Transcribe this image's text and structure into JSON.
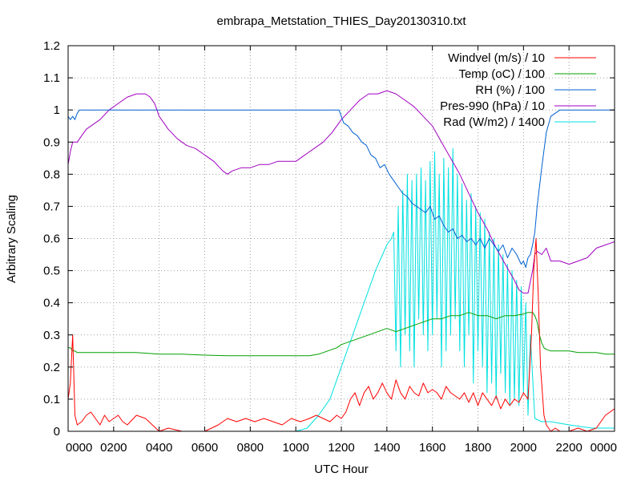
{
  "chart_data": {
    "type": "line",
    "title": "embrapa_Metstation_THIES_Day20130310.txt",
    "xlabel": "UTC Hour",
    "ylabel": "Arbitrary Scaling",
    "xlim": [
      0,
      24
    ],
    "ylim": [
      0,
      1.2
    ],
    "grid": true,
    "legend_position": "top-right",
    "x_ticks": [
      {
        "value": 0,
        "label": "0000"
      },
      {
        "value": 2,
        "label": "0200"
      },
      {
        "value": 4,
        "label": "0400"
      },
      {
        "value": 6,
        "label": "0600"
      },
      {
        "value": 8,
        "label": "0800"
      },
      {
        "value": 10,
        "label": "1000"
      },
      {
        "value": 12,
        "label": "1200"
      },
      {
        "value": 14,
        "label": "1400"
      },
      {
        "value": 16,
        "label": "1600"
      },
      {
        "value": 18,
        "label": "1800"
      },
      {
        "value": 20,
        "label": "2000"
      },
      {
        "value": 22,
        "label": "2200"
      },
      {
        "value": 24,
        "label": "0000"
      }
    ],
    "y_ticks": [
      {
        "value": 0,
        "label": "0"
      },
      {
        "value": 0.1,
        "label": "0.1"
      },
      {
        "value": 0.2,
        "label": "0.2"
      },
      {
        "value": 0.3,
        "label": "0.3"
      },
      {
        "value": 0.4,
        "label": "0.4"
      },
      {
        "value": 0.5,
        "label": "0.5"
      },
      {
        "value": 0.6,
        "label": "0.6"
      },
      {
        "value": 0.7,
        "label": "0.7"
      },
      {
        "value": 0.8,
        "label": "0.8"
      },
      {
        "value": 0.9,
        "label": "0.9"
      },
      {
        "value": 1,
        "label": "1"
      },
      {
        "value": 1.1,
        "label": "1.1"
      },
      {
        "value": 1.2,
        "label": "1.2"
      }
    ],
    "series": [
      {
        "name": "Windvel (m/s) / 10",
        "color": "#ff0000",
        "x": [
          0.0,
          0.1,
          0.2,
          0.3,
          0.4,
          0.6,
          0.8,
          1.0,
          1.2,
          1.4,
          1.6,
          1.8,
          2.0,
          2.2,
          2.4,
          2.6,
          3.0,
          3.4,
          4.0,
          4.4,
          5.0,
          5.6,
          6.0,
          6.6,
          7.0,
          7.4,
          7.8,
          8.2,
          8.6,
          9.0,
          9.4,
          9.8,
          10.2,
          10.6,
          10.9,
          11.2,
          11.5,
          11.8,
          12.0,
          12.2,
          12.4,
          12.6,
          12.8,
          13.0,
          13.2,
          13.4,
          13.6,
          13.8,
          14.0,
          14.2,
          14.4,
          14.6,
          14.8,
          15.0,
          15.2,
          15.4,
          15.6,
          15.8,
          16.0,
          16.2,
          16.4,
          16.6,
          16.8,
          17.0,
          17.2,
          17.4,
          17.6,
          17.8,
          18.0,
          18.2,
          18.4,
          18.6,
          18.8,
          19.0,
          19.2,
          19.4,
          19.6,
          19.8,
          20.0,
          20.2,
          20.35,
          20.45,
          20.55,
          20.65,
          20.75,
          20.9,
          21.0,
          21.2,
          21.4,
          21.6,
          22.0,
          22.4,
          22.8,
          23.2,
          23.4,
          23.6,
          23.8,
          24.0
        ],
        "values": [
          0.1,
          0.15,
          0.3,
          0.05,
          0.02,
          0.03,
          0.05,
          0.06,
          0.04,
          0.02,
          0.05,
          0.03,
          0.04,
          0.05,
          0.03,
          0.02,
          0.05,
          0.04,
          0.0,
          0.01,
          0.0,
          0.0,
          0.0,
          0.02,
          0.04,
          0.03,
          0.04,
          0.03,
          0.04,
          0.03,
          0.02,
          0.04,
          0.03,
          0.04,
          0.05,
          0.04,
          0.03,
          0.05,
          0.04,
          0.06,
          0.1,
          0.12,
          0.08,
          0.12,
          0.14,
          0.1,
          0.12,
          0.15,
          0.12,
          0.1,
          0.16,
          0.12,
          0.1,
          0.14,
          0.12,
          0.11,
          0.15,
          0.12,
          0.13,
          0.12,
          0.1,
          0.14,
          0.12,
          0.11,
          0.1,
          0.12,
          0.09,
          0.12,
          0.08,
          0.12,
          0.1,
          0.08,
          0.11,
          0.07,
          0.1,
          0.08,
          0.1,
          0.09,
          0.12,
          0.1,
          0.3,
          0.5,
          0.6,
          0.42,
          0.2,
          0.05,
          0.02,
          0.0,
          0.01,
          0.0,
          0.0,
          0.01,
          0.0,
          0.01,
          0.03,
          0.05,
          0.06,
          0.07
        ]
      },
      {
        "name": "Temp (oC) / 100",
        "color": "#00a000",
        "x": [
          0.0,
          0.1,
          0.2,
          0.3,
          0.4,
          1.0,
          2.0,
          3.0,
          4.0,
          5.0,
          6.0,
          7.0,
          8.0,
          9.0,
          10.0,
          10.6,
          11.0,
          11.4,
          11.8,
          12.0,
          12.4,
          12.8,
          13.2,
          13.6,
          14.0,
          14.4,
          14.8,
          15.2,
          15.6,
          16.0,
          16.4,
          16.8,
          17.2,
          17.6,
          18.0,
          18.4,
          18.8,
          19.2,
          19.6,
          20.0,
          20.2,
          20.4,
          20.5,
          20.6,
          20.7,
          20.8,
          20.9,
          21.0,
          21.2,
          21.6,
          22.0,
          22.4,
          22.8,
          23.2,
          23.6,
          24.0
        ],
        "values": [
          0.26,
          0.26,
          0.25,
          0.25,
          0.245,
          0.245,
          0.245,
          0.245,
          0.24,
          0.24,
          0.237,
          0.235,
          0.235,
          0.235,
          0.235,
          0.235,
          0.24,
          0.25,
          0.26,
          0.27,
          0.28,
          0.29,
          0.3,
          0.31,
          0.32,
          0.31,
          0.32,
          0.33,
          0.34,
          0.35,
          0.35,
          0.36,
          0.36,
          0.37,
          0.36,
          0.36,
          0.35,
          0.36,
          0.36,
          0.365,
          0.37,
          0.37,
          0.36,
          0.34,
          0.3,
          0.275,
          0.26,
          0.255,
          0.25,
          0.25,
          0.25,
          0.245,
          0.245,
          0.245,
          0.24,
          0.24
        ]
      },
      {
        "name": "RH (%) / 100",
        "color": "#0060d0",
        "x": [
          0.0,
          0.1,
          0.2,
          0.3,
          0.4,
          0.5,
          0.6,
          1.0,
          2.0,
          4.0,
          6.0,
          8.0,
          10.0,
          11.0,
          11.9,
          12.0,
          12.1,
          12.3,
          12.5,
          12.7,
          12.9,
          13.1,
          13.3,
          13.5,
          13.7,
          13.9,
          14.1,
          14.3,
          14.5,
          14.7,
          14.9,
          15.1,
          15.3,
          15.5,
          15.7,
          15.9,
          16.1,
          16.3,
          16.5,
          16.7,
          16.9,
          17.1,
          17.3,
          17.5,
          17.7,
          17.9,
          18.1,
          18.3,
          18.5,
          18.7,
          18.9,
          19.1,
          19.3,
          19.5,
          19.7,
          19.9,
          20.0,
          20.1,
          20.2,
          20.3,
          20.4,
          20.5,
          20.6,
          20.8,
          21.0,
          21.2,
          21.4,
          21.6,
          22.0,
          23.0,
          24.0
        ],
        "values": [
          0.98,
          0.97,
          0.98,
          0.97,
          0.99,
          1.0,
          1.0,
          1.0,
          1.0,
          1.0,
          1.0,
          1.0,
          1.0,
          1.0,
          1.0,
          0.98,
          0.96,
          0.95,
          0.93,
          0.92,
          0.9,
          0.89,
          0.86,
          0.85,
          0.82,
          0.83,
          0.8,
          0.78,
          0.76,
          0.74,
          0.73,
          0.71,
          0.7,
          0.69,
          0.68,
          0.7,
          0.66,
          0.67,
          0.64,
          0.62,
          0.63,
          0.6,
          0.61,
          0.59,
          0.6,
          0.58,
          0.6,
          0.57,
          0.6,
          0.58,
          0.56,
          0.58,
          0.54,
          0.57,
          0.55,
          0.52,
          0.53,
          0.51,
          0.54,
          0.55,
          0.58,
          0.62,
          0.7,
          0.82,
          0.93,
          0.98,
          0.99,
          1.0,
          1.0,
          1.0,
          1.0
        ]
      },
      {
        "name": "Pres-990 (hPa) / 10",
        "color": "#a000c0",
        "x": [
          0.0,
          0.1,
          0.2,
          0.4,
          0.6,
          0.8,
          1.0,
          1.4,
          1.8,
          2.2,
          2.6,
          3.0,
          3.4,
          3.6,
          3.8,
          4.0,
          4.4,
          4.8,
          5.2,
          5.6,
          6.0,
          6.4,
          6.8,
          7.0,
          7.2,
          7.6,
          8.0,
          8.4,
          8.8,
          9.2,
          9.6,
          10.0,
          10.4,
          10.8,
          11.2,
          11.6,
          12.0,
          12.4,
          12.8,
          13.2,
          13.6,
          14.0,
          14.4,
          14.8,
          15.2,
          15.6,
          16.0,
          16.4,
          16.8,
          17.2,
          17.6,
          18.0,
          18.4,
          18.8,
          19.2,
          19.6,
          19.8,
          20.0,
          20.2,
          20.4,
          20.5,
          20.6,
          20.8,
          21.0,
          21.2,
          21.6,
          22.0,
          22.4,
          22.8,
          23.2,
          23.6,
          24.0
        ],
        "values": [
          0.83,
          0.87,
          0.9,
          0.9,
          0.92,
          0.94,
          0.95,
          0.97,
          1.0,
          1.02,
          1.04,
          1.05,
          1.05,
          1.04,
          1.02,
          0.98,
          0.94,
          0.91,
          0.89,
          0.88,
          0.86,
          0.84,
          0.81,
          0.8,
          0.81,
          0.82,
          0.82,
          0.83,
          0.83,
          0.84,
          0.84,
          0.84,
          0.86,
          0.88,
          0.9,
          0.93,
          0.97,
          1.0,
          1.03,
          1.05,
          1.05,
          1.06,
          1.05,
          1.03,
          1.01,
          0.98,
          0.95,
          0.9,
          0.85,
          0.8,
          0.74,
          0.68,
          0.63,
          0.57,
          0.52,
          0.47,
          0.44,
          0.43,
          0.43,
          0.5,
          0.55,
          0.56,
          0.55,
          0.57,
          0.53,
          0.53,
          0.52,
          0.53,
          0.54,
          0.57,
          0.58,
          0.59
        ]
      },
      {
        "name": "Rad (W/m2) / 1400",
        "color": "#00e0e0",
        "x": [
          0.0,
          5.0,
          10.0,
          10.5,
          11.0,
          11.5,
          12.0,
          12.5,
          13.0,
          13.5,
          14.0,
          14.2,
          14.3,
          14.4,
          14.5,
          14.6,
          14.7,
          14.8,
          14.9,
          15.0,
          15.1,
          15.2,
          15.3,
          15.4,
          15.5,
          15.6,
          15.7,
          15.8,
          15.9,
          16.0,
          16.1,
          16.2,
          16.3,
          16.4,
          16.5,
          16.6,
          16.7,
          16.8,
          16.9,
          17.0,
          17.1,
          17.2,
          17.3,
          17.4,
          17.5,
          17.6,
          17.7,
          17.8,
          17.9,
          18.0,
          18.1,
          18.2,
          18.3,
          18.4,
          18.5,
          18.6,
          18.7,
          18.8,
          18.9,
          19.0,
          19.1,
          19.2,
          19.3,
          19.4,
          19.5,
          19.6,
          19.7,
          19.8,
          19.9,
          20.0,
          20.1,
          20.2,
          20.3,
          20.5,
          20.8,
          21.2,
          22.0,
          23.0,
          24.0
        ],
        "values": [
          0.0,
          0.0,
          0.0,
          0.01,
          0.05,
          0.1,
          0.2,
          0.3,
          0.4,
          0.5,
          0.58,
          0.6,
          0.62,
          0.25,
          0.7,
          0.2,
          0.75,
          0.3,
          0.8,
          0.25,
          0.78,
          0.2,
          0.8,
          0.35,
          0.82,
          0.3,
          0.78,
          0.25,
          0.84,
          0.3,
          0.87,
          0.35,
          0.8,
          0.2,
          0.85,
          0.25,
          0.82,
          0.3,
          0.88,
          0.35,
          0.8,
          0.25,
          0.77,
          0.2,
          0.72,
          0.3,
          0.74,
          0.15,
          0.7,
          0.25,
          0.68,
          0.2,
          0.66,
          0.12,
          0.62,
          0.15,
          0.6,
          0.1,
          0.58,
          0.18,
          0.55,
          0.12,
          0.52,
          0.08,
          0.5,
          0.1,
          0.47,
          0.08,
          0.45,
          0.12,
          0.4,
          0.05,
          0.3,
          0.04,
          0.03,
          0.03,
          0.02,
          0.01,
          0.01
        ]
      }
    ]
  }
}
